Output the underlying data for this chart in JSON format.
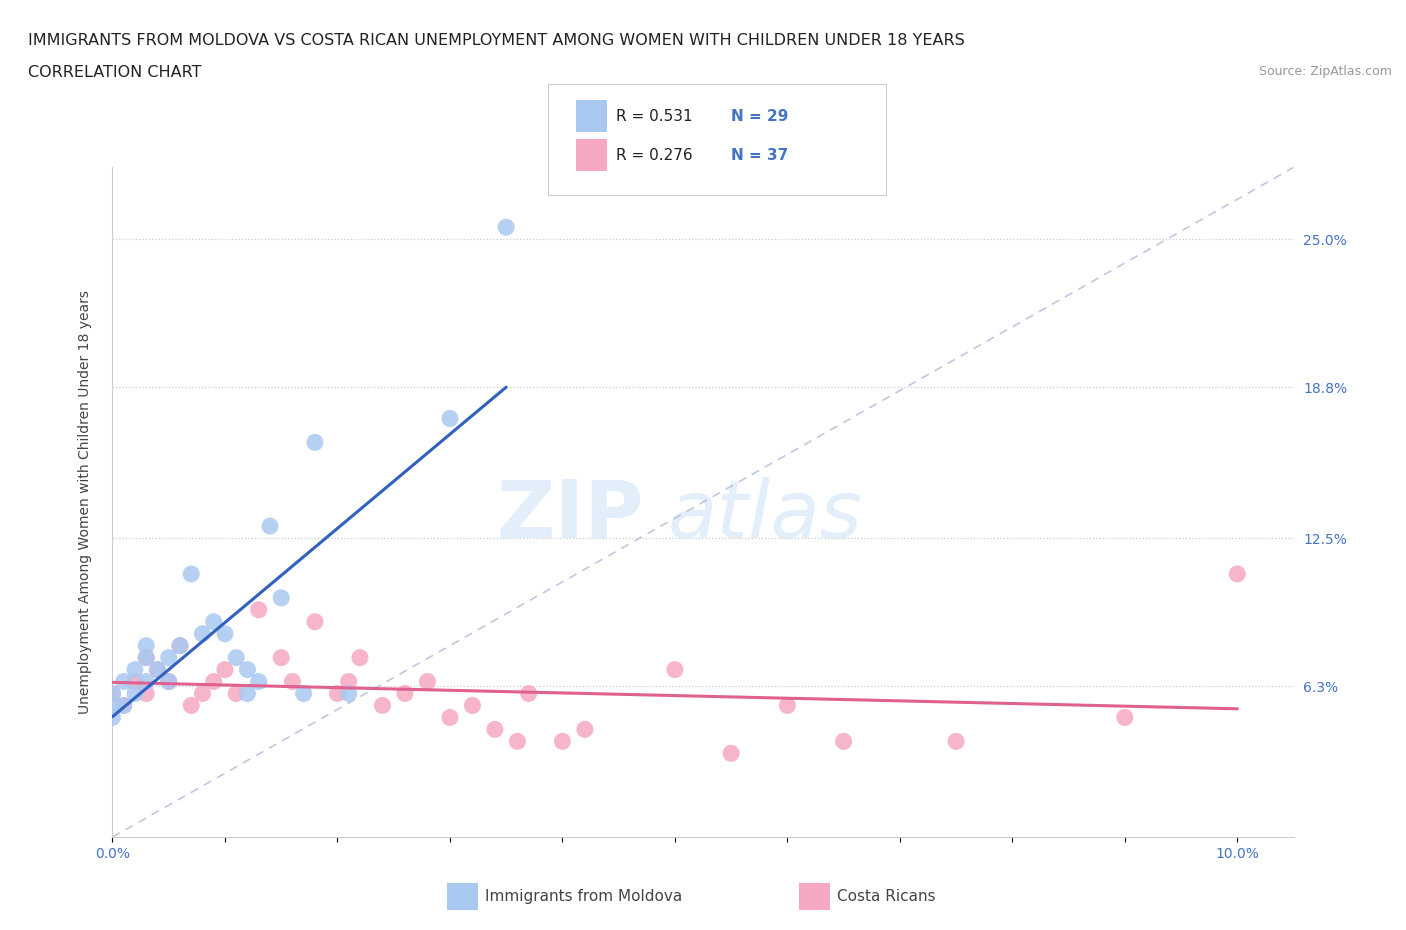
{
  "title_line1": "IMMIGRANTS FROM MOLDOVA VS COSTA RICAN UNEMPLOYMENT AMONG WOMEN WITH CHILDREN UNDER 18 YEARS",
  "title_line2": "CORRELATION CHART",
  "source_text": "Source: ZipAtlas.com",
  "ylabel": "Unemployment Among Women with Children Under 18 years",
  "xlim": [
    0.0,
    0.105
  ],
  "ylim": [
    0.0,
    0.28
  ],
  "ytick_vals": [
    0.063,
    0.125,
    0.188,
    0.25
  ],
  "ytick_labels": [
    "6.3%",
    "12.5%",
    "18.8%",
    "25.0%"
  ],
  "xtick_positions": [
    0.0,
    0.01,
    0.02,
    0.03,
    0.04,
    0.05,
    0.06,
    0.07,
    0.08,
    0.09,
    0.1
  ],
  "xtick_labels": [
    "0.0%",
    "",
    "",
    "",
    "",
    "",
    "",
    "",
    "",
    "",
    "10.0%"
  ],
  "legend_r1": "R = 0.531",
  "legend_n1": "N = 29",
  "legend_r2": "R = 0.276",
  "legend_n2": "N = 37",
  "color_moldova": "#A8C8F0",
  "color_costarica": "#F5A8C0",
  "color_moldova_line": "#3060C0",
  "color_costarica_line": "#E06090",
  "color_diagonal": "#B0B8D8",
  "watermark_zip": "ZIP",
  "watermark_atlas": "atlas",
  "moldova_scatter_x": [
    0.0,
    0.0,
    0.0,
    0.001,
    0.001,
    0.002,
    0.002,
    0.003,
    0.003,
    0.003,
    0.004,
    0.005,
    0.005,
    0.006,
    0.007,
    0.008,
    0.009,
    0.01,
    0.011,
    0.012,
    0.012,
    0.013,
    0.014,
    0.015,
    0.017,
    0.018,
    0.021,
    0.03,
    0.035
  ],
  "moldova_scatter_y": [
    0.05,
    0.055,
    0.06,
    0.055,
    0.065,
    0.06,
    0.07,
    0.065,
    0.08,
    0.075,
    0.07,
    0.065,
    0.075,
    0.08,
    0.11,
    0.085,
    0.09,
    0.085,
    0.075,
    0.07,
    0.06,
    0.065,
    0.13,
    0.1,
    0.06,
    0.165,
    0.06,
    0.175,
    0.255
  ],
  "costarica_scatter_x": [
    0.0,
    0.001,
    0.002,
    0.003,
    0.003,
    0.004,
    0.005,
    0.006,
    0.007,
    0.008,
    0.009,
    0.01,
    0.011,
    0.013,
    0.015,
    0.016,
    0.018,
    0.02,
    0.021,
    0.022,
    0.024,
    0.026,
    0.028,
    0.03,
    0.032,
    0.034,
    0.036,
    0.037,
    0.04,
    0.042,
    0.05,
    0.055,
    0.06,
    0.065,
    0.075,
    0.09,
    0.1
  ],
  "costarica_scatter_y": [
    0.06,
    0.055,
    0.065,
    0.06,
    0.075,
    0.07,
    0.065,
    0.08,
    0.055,
    0.06,
    0.065,
    0.07,
    0.06,
    0.095,
    0.075,
    0.065,
    0.09,
    0.06,
    0.065,
    0.075,
    0.055,
    0.06,
    0.065,
    0.05,
    0.055,
    0.045,
    0.04,
    0.06,
    0.04,
    0.045,
    0.07,
    0.035,
    0.055,
    0.04,
    0.04,
    0.05,
    0.11
  ],
  "background_color": "#FFFFFF",
  "title_fontsize": 11.5,
  "tick_fontsize": 10,
  "axis_label_fontsize": 10
}
